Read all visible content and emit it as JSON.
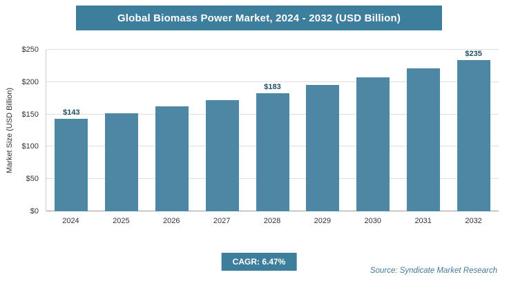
{
  "header": {
    "title": "Global Biomass Power Market, 2024 - 2032 (USD Billion)"
  },
  "chart_data": {
    "type": "bar",
    "title": "Global Biomass Power Market, 2024 - 2032 (USD Billion)",
    "categories": [
      "2024",
      "2025",
      "2026",
      "2027",
      "2028",
      "2029",
      "2030",
      "2031",
      "2032"
    ],
    "values": [
      143,
      152,
      162,
      172,
      183,
      195,
      207,
      221,
      235
    ],
    "point_labels": {
      "2024": "$143",
      "2028": "$183",
      "2032": "$235"
    },
    "xlabel": "",
    "ylabel": "Market Size (USD Billion)",
    "ylim": [
      0,
      250
    ],
    "yticks": [
      {
        "value": 0,
        "label": "$0"
      },
      {
        "value": 50,
        "label": "$50"
      },
      {
        "value": 100,
        "label": "$100"
      },
      {
        "value": 150,
        "label": "$150"
      },
      {
        "value": 200,
        "label": "$200"
      },
      {
        "value": 250,
        "label": "$250"
      }
    ],
    "grid": "horizontal",
    "legend": "none",
    "bar_color": "#4d87a3"
  },
  "footer": {
    "cagr_label": "CAGR: 6.47%",
    "source": "Source: Syndicate Market Research"
  },
  "colors": {
    "header_bg": "#3d7e9c",
    "bar": "#4d87a3",
    "badge_bg": "#3d7e9c",
    "value_label_text": "#1d4d62",
    "source_text": "#44799b"
  }
}
